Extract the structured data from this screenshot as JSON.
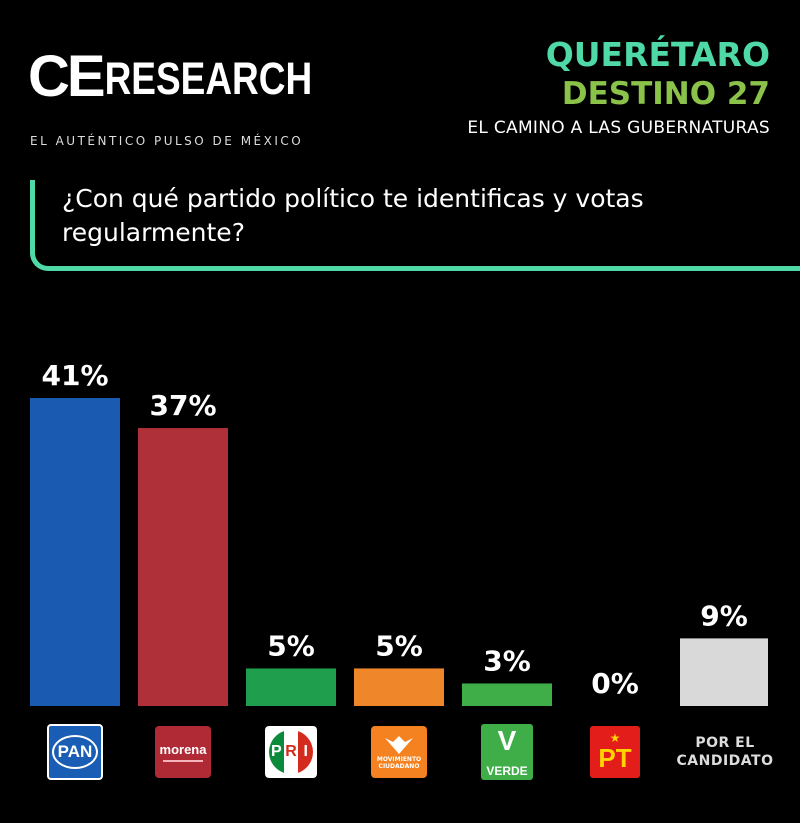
{
  "header": {
    "logo_ce": "CE",
    "logo_research": "RESEARCH",
    "logo_tagline": "EL AUTÉNTICO PULSO DE MÉXICO",
    "line1": "QUERÉTARO",
    "line2": "DESTINO 27",
    "line3": "EL CAMINO A LAS GUBERNATURAS"
  },
  "question": "¿Con qué partido político te identificas y votas regularmente?",
  "icons": {
    "pan": "PAN",
    "morena": "morena",
    "pri": [
      "P",
      "R",
      "I"
    ],
    "mc": "MOVIMIENTO CIUDADANO",
    "verde": "VERDE",
    "pt": "PT",
    "candidato": [
      "POR EL",
      "CANDIDATO"
    ]
  },
  "chart_data": {
    "type": "bar",
    "categories": [
      "PAN",
      "Morena",
      "PRI",
      "Movimiento Ciudadano",
      "Verde",
      "PT",
      "POR EL CANDIDATO"
    ],
    "values": [
      41,
      37,
      5,
      5,
      3,
      0,
      9
    ],
    "value_labels": [
      "41%",
      "37%",
      "5%",
      "5%",
      "3%",
      "0%",
      "9%"
    ],
    "colors": [
      "#1a5ab0",
      "#b0303a",
      "#1f9e4e",
      "#f0862a",
      "#3fae49",
      "#e31d1a",
      "#d9d9d9"
    ],
    "ylim": [
      0,
      41
    ],
    "grid": false,
    "legend": "none"
  }
}
